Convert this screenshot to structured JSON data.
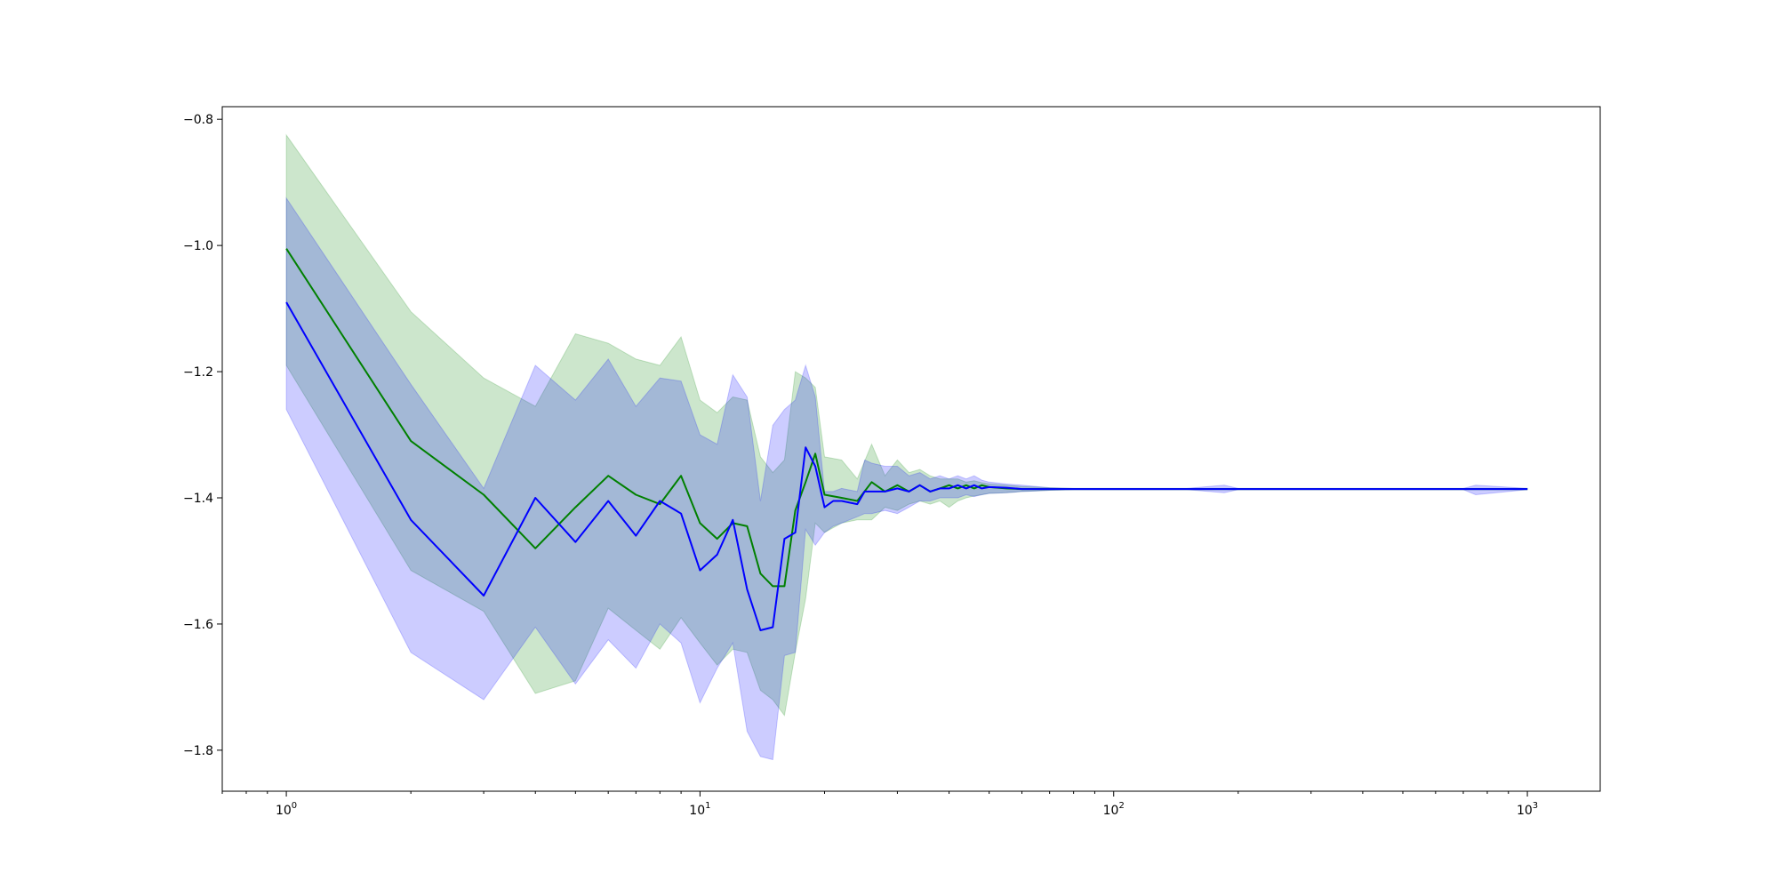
{
  "chart_data": {
    "type": "line",
    "title": "",
    "xlabel": "",
    "ylabel": "",
    "x_scale": "log",
    "xlim": [
      0.7,
      1500
    ],
    "ylim": [
      -1.865,
      -0.78
    ],
    "grid": false,
    "legend": "none",
    "x_ticks": [
      {
        "value": 1,
        "base": "10",
        "exp": "0"
      },
      {
        "value": 10,
        "base": "10",
        "exp": "1"
      },
      {
        "value": 100,
        "base": "10",
        "exp": "2"
      },
      {
        "value": 1000,
        "base": "10",
        "exp": "3"
      }
    ],
    "y_ticks": [
      {
        "value": -0.8,
        "label": "−0.8"
      },
      {
        "value": -1.0,
        "label": "−1.0"
      },
      {
        "value": -1.2,
        "label": "−1.2"
      },
      {
        "value": -1.4,
        "label": "−1.4"
      },
      {
        "value": -1.6,
        "label": "−1.6"
      },
      {
        "value": -1.8,
        "label": "−1.8"
      }
    ],
    "series": [
      {
        "color": "#008000",
        "band_color": "#008000",
        "band_opacity": 0.2,
        "x": [
          1,
          2,
          3,
          4,
          5,
          6,
          7,
          8,
          9,
          10,
          11,
          12,
          13,
          14,
          15,
          16,
          17,
          18,
          19,
          20,
          22,
          24,
          26,
          28,
          30,
          32,
          34,
          36,
          38,
          40,
          42,
          44,
          46,
          48,
          50,
          55,
          60,
          65,
          70,
          80,
          90,
          100,
          150,
          200,
          300,
          500,
          700,
          1000
        ],
        "mean": [
          -1.005,
          -1.31,
          -1.395,
          -1.48,
          -1.415,
          -1.365,
          -1.395,
          -1.41,
          -1.365,
          -1.44,
          -1.465,
          -1.44,
          -1.445,
          -1.52,
          -1.54,
          -1.54,
          -1.42,
          -1.375,
          -1.33,
          -1.395,
          -1.4,
          -1.405,
          -1.375,
          -1.39,
          -1.38,
          -1.39,
          -1.38,
          -1.39,
          -1.385,
          -1.38,
          -1.385,
          -1.38,
          -1.385,
          -1.38,
          -1.383,
          -1.385,
          -1.386,
          -1.386,
          -1.386,
          -1.386,
          -1.386,
          -1.386,
          -1.386,
          -1.386,
          -1.386,
          -1.386,
          -1.386,
          -1.386
        ],
        "upper": [
          -0.825,
          -1.105,
          -1.21,
          -1.255,
          -1.14,
          -1.155,
          -1.18,
          -1.19,
          -1.145,
          -1.245,
          -1.265,
          -1.24,
          -1.245,
          -1.335,
          -1.36,
          -1.34,
          -1.2,
          -1.21,
          -1.225,
          -1.335,
          -1.34,
          -1.37,
          -1.315,
          -1.365,
          -1.34,
          -1.36,
          -1.355,
          -1.365,
          -1.37,
          -1.37,
          -1.37,
          -1.375,
          -1.373,
          -1.376,
          -1.378,
          -1.38,
          -1.382,
          -1.383,
          -1.384,
          -1.385,
          -1.385,
          -1.385,
          -1.385,
          -1.385,
          -1.385,
          -1.385,
          -1.385,
          -1.385
        ],
        "lower": [
          -1.19,
          -1.515,
          -1.58,
          -1.71,
          -1.69,
          -1.575,
          -1.61,
          -1.64,
          -1.59,
          -1.63,
          -1.665,
          -1.64,
          -1.645,
          -1.705,
          -1.72,
          -1.745,
          -1.645,
          -1.56,
          -1.44,
          -1.455,
          -1.44,
          -1.435,
          -1.435,
          -1.415,
          -1.42,
          -1.41,
          -1.405,
          -1.41,
          -1.405,
          -1.415,
          -1.405,
          -1.4,
          -1.397,
          -1.395,
          -1.393,
          -1.392,
          -1.39,
          -1.389,
          -1.388,
          -1.387,
          -1.387,
          -1.387,
          -1.387,
          -1.387,
          -1.387,
          -1.387,
          -1.387,
          -1.387
        ]
      },
      {
        "color": "#0000ff",
        "band_color": "#0000ff",
        "band_opacity": 0.2,
        "x": [
          1,
          2,
          3,
          4,
          5,
          6,
          7,
          8,
          9,
          10,
          11,
          12,
          13,
          14,
          15,
          16,
          17,
          18,
          19,
          20,
          21,
          22,
          24,
          25,
          26,
          28,
          30,
          32,
          34,
          36,
          38,
          40,
          42,
          44,
          46,
          48,
          50,
          55,
          60,
          65,
          70,
          80,
          90,
          100,
          150,
          185,
          200,
          300,
          500,
          700,
          750,
          1000
        ],
        "mean": [
          -1.09,
          -1.435,
          -1.555,
          -1.4,
          -1.47,
          -1.405,
          -1.46,
          -1.405,
          -1.425,
          -1.515,
          -1.49,
          -1.435,
          -1.545,
          -1.61,
          -1.605,
          -1.465,
          -1.455,
          -1.32,
          -1.35,
          -1.415,
          -1.405,
          -1.405,
          -1.41,
          -1.39,
          -1.39,
          -1.39,
          -1.385,
          -1.39,
          -1.38,
          -1.39,
          -1.385,
          -1.385,
          -1.38,
          -1.385,
          -1.38,
          -1.385,
          -1.383,
          -1.384,
          -1.386,
          -1.386,
          -1.386,
          -1.386,
          -1.386,
          -1.386,
          -1.386,
          -1.386,
          -1.386,
          -1.386,
          -1.386,
          -1.386,
          -1.386,
          -1.386
        ],
        "upper": [
          -0.925,
          -1.22,
          -1.385,
          -1.19,
          -1.245,
          -1.18,
          -1.255,
          -1.21,
          -1.215,
          -1.3,
          -1.315,
          -1.205,
          -1.24,
          -1.405,
          -1.285,
          -1.26,
          -1.245,
          -1.19,
          -1.24,
          -1.39,
          -1.39,
          -1.385,
          -1.39,
          -1.34,
          -1.345,
          -1.35,
          -1.35,
          -1.365,
          -1.36,
          -1.37,
          -1.365,
          -1.37,
          -1.365,
          -1.37,
          -1.365,
          -1.372,
          -1.375,
          -1.378,
          -1.38,
          -1.382,
          -1.384,
          -1.385,
          -1.385,
          -1.385,
          -1.385,
          -1.38,
          -1.385,
          -1.385,
          -1.385,
          -1.385,
          -1.38,
          -1.385
        ],
        "lower": [
          -1.26,
          -1.645,
          -1.72,
          -1.605,
          -1.695,
          -1.625,
          -1.67,
          -1.6,
          -1.63,
          -1.725,
          -1.67,
          -1.63,
          -1.77,
          -1.81,
          -1.815,
          -1.65,
          -1.645,
          -1.45,
          -1.475,
          -1.455,
          -1.445,
          -1.44,
          -1.43,
          -1.425,
          -1.425,
          -1.42,
          -1.425,
          -1.415,
          -1.405,
          -1.405,
          -1.4,
          -1.4,
          -1.4,
          -1.395,
          -1.398,
          -1.395,
          -1.393,
          -1.392,
          -1.39,
          -1.389,
          -1.388,
          -1.387,
          -1.387,
          -1.387,
          -1.387,
          -1.392,
          -1.387,
          -1.387,
          -1.387,
          -1.387,
          -1.395,
          -1.387
        ]
      }
    ]
  }
}
